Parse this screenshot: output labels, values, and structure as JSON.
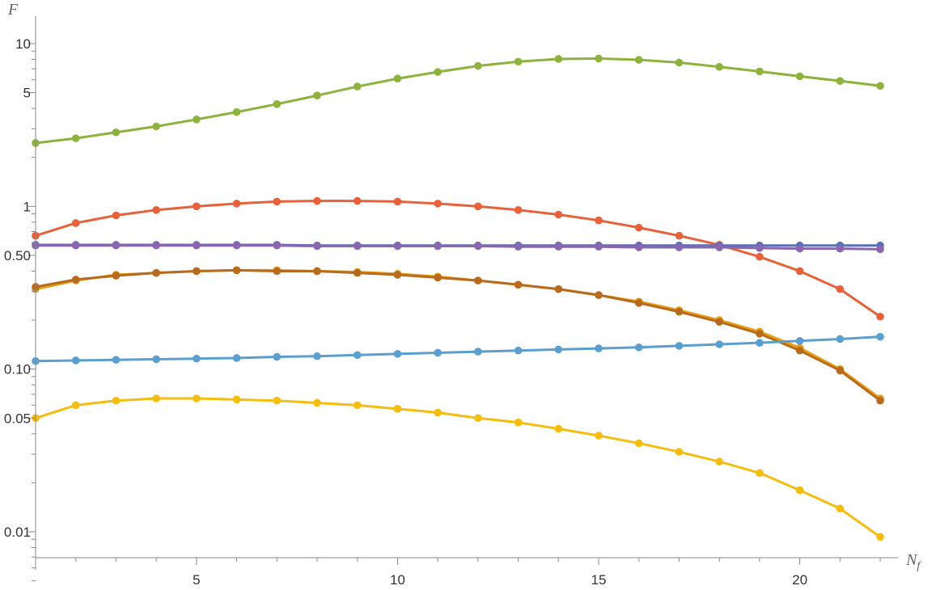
{
  "chart_data": {
    "type": "line",
    "title": "",
    "xlabel": "N",
    "xlabel_sub": "f",
    "ylabel": "F",
    "y_scale": "log",
    "xlim": [
      1,
      22
    ],
    "ylim": [
      0.0045,
      13
    ],
    "x_ticks": [
      5,
      10,
      15,
      20
    ],
    "x_tick_labels": [
      "5",
      "10",
      "15",
      "20"
    ],
    "y_ticks": [
      0.01,
      0.05,
      0.1,
      0.5,
      1,
      5,
      10
    ],
    "y_tick_labels": [
      "0.01",
      "0.05",
      "0.10",
      "0.50",
      "1",
      "5",
      "10"
    ],
    "grid": false,
    "legend": "none",
    "x": [
      1,
      2,
      3,
      4,
      5,
      6,
      7,
      8,
      9,
      10,
      11,
      12,
      13,
      14,
      15,
      16,
      17,
      18,
      19,
      20,
      21,
      22
    ],
    "series": [
      {
        "color": "#8DB33E",
        "values": [
          2.45,
          2.62,
          2.85,
          3.1,
          3.42,
          3.8,
          4.25,
          4.8,
          5.45,
          6.1,
          6.7,
          7.3,
          7.75,
          8.05,
          8.1,
          7.95,
          7.65,
          7.2,
          6.75,
          6.3,
          5.9,
          5.5
        ]
      },
      {
        "color": "#E8613A",
        "values": [
          0.66,
          0.79,
          0.88,
          0.95,
          1.0,
          1.04,
          1.07,
          1.08,
          1.08,
          1.07,
          1.04,
          1.0,
          0.95,
          0.89,
          0.82,
          0.74,
          0.66,
          0.58,
          0.49,
          0.4,
          0.31,
          0.21
        ]
      },
      {
        "color": "#5B6FB6",
        "values": [
          0.58,
          0.58,
          0.58,
          0.58,
          0.58,
          0.58,
          0.58,
          0.575,
          0.575,
          0.575,
          0.575,
          0.575,
          0.575,
          0.575,
          0.575,
          0.575,
          0.575,
          0.575,
          0.575,
          0.575,
          0.575,
          0.575
        ]
      },
      {
        "color": "#8B66B0",
        "values": [
          0.575,
          0.575,
          0.575,
          0.575,
          0.575,
          0.575,
          0.575,
          0.57,
          0.57,
          0.57,
          0.57,
          0.57,
          0.565,
          0.565,
          0.565,
          0.56,
          0.56,
          0.56,
          0.555,
          0.55,
          0.55,
          0.545
        ]
      },
      {
        "color": "#E8A012",
        "values": [
          0.31,
          0.35,
          0.38,
          0.39,
          0.4,
          0.405,
          0.405,
          0.4,
          0.395,
          0.385,
          0.37,
          0.35,
          0.33,
          0.31,
          0.285,
          0.26,
          0.23,
          0.2,
          0.17,
          0.135,
          0.1,
          0.066
        ]
      },
      {
        "color": "#B86A1E",
        "values": [
          0.32,
          0.355,
          0.375,
          0.39,
          0.4,
          0.405,
          0.4,
          0.4,
          0.39,
          0.38,
          0.365,
          0.35,
          0.33,
          0.31,
          0.285,
          0.255,
          0.225,
          0.195,
          0.165,
          0.13,
          0.098,
          0.064
        ]
      },
      {
        "color": "#5A9FD0",
        "values": [
          0.112,
          0.113,
          0.114,
          0.115,
          0.116,
          0.117,
          0.119,
          0.12,
          0.122,
          0.124,
          0.126,
          0.128,
          0.13,
          0.132,
          0.134,
          0.136,
          0.139,
          0.142,
          0.145,
          0.149,
          0.153,
          0.158
        ]
      },
      {
        "color": "#F5BD10",
        "values": [
          0.05,
          0.06,
          0.064,
          0.066,
          0.066,
          0.065,
          0.064,
          0.062,
          0.06,
          0.057,
          0.054,
          0.05,
          0.047,
          0.043,
          0.039,
          0.035,
          0.031,
          0.027,
          0.023,
          0.018,
          0.0139,
          0.0093
        ]
      }
    ]
  }
}
